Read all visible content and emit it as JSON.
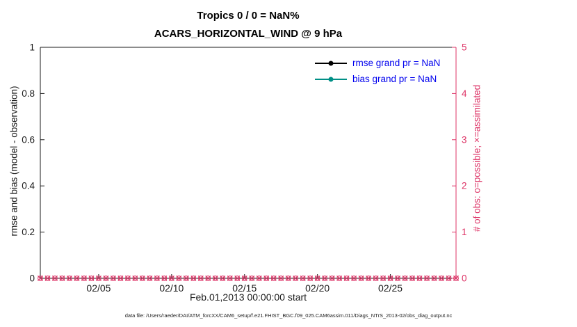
{
  "title": {
    "line1": "Tropics 0 / 0 = NaN%",
    "line2": "ACARS_HORIZONTAL_WIND @ 9 hPa"
  },
  "left_axis": {
    "label": "rmse and bias (model - observation)",
    "ticks": [
      "0",
      "0.2",
      "0.4",
      "0.6",
      "0.8",
      "1"
    ],
    "tick_values": [
      0,
      0.2,
      0.4,
      0.6,
      0.8,
      1
    ],
    "range": [
      0,
      1
    ],
    "color": "#1a1a1a"
  },
  "right_axis": {
    "label": "# of obs: o=possible; ×=assimilated",
    "ticks": [
      "0",
      "1",
      "2",
      "3",
      "4",
      "5"
    ],
    "tick_values": [
      0,
      1,
      2,
      3,
      4,
      5
    ],
    "range": [
      0,
      5
    ],
    "color": "#dd3366"
  },
  "x_axis": {
    "label": "Feb.01,2013 00:00:00 start",
    "tick_labels": [
      "02/05",
      "02/10",
      "02/15",
      "02/20",
      "02/25"
    ],
    "tick_days": [
      5,
      10,
      15,
      20,
      25
    ],
    "range_days": [
      1,
      29.5
    ]
  },
  "legend": {
    "items": [
      {
        "label": "rmse grand pr = NaN",
        "color": "#000000"
      },
      {
        "label": "bias grand pr = NaN",
        "color": "#008f86"
      }
    ],
    "text_color": "#0000ee"
  },
  "footer": "data file: /Users/raeder/DAI/ATM_forcXX/CAM6_setup/f.e21.FHIST_BGC.f09_025.CAM6assim.011/Diags_NTrS_2013-02/obs_diag_output.nc",
  "chart_data": {
    "type": "line",
    "title": "Tropics 0 / 0 = NaN% — ACARS_HORIZONTAL_WIND @ 9 hPa",
    "xlabel": "Feb.01,2013 00:00:00 start",
    "ylabel_left": "rmse and bias (model - observation)",
    "ylabel_right": "# of obs: o=possible; ×=assimilated",
    "x_tick_labels": [
      "02/05",
      "02/10",
      "02/15",
      "02/20",
      "02/25"
    ],
    "x_range_days_feb2013": [
      1,
      29.5
    ],
    "ylim_left": [
      0,
      1
    ],
    "ylim_right": [
      0,
      5
    ],
    "grid": false,
    "legend_position": "upper right inside",
    "series": [
      {
        "name": "rmse grand pr",
        "axis": "left",
        "summary_value": "NaN",
        "values": []
      },
      {
        "name": "bias grand pr",
        "axis": "left",
        "summary_value": "NaN",
        "values": []
      },
      {
        "name": "obs possible (o)",
        "axis": "right",
        "marker": "o",
        "constant_value": 0,
        "times_days": {
          "start": 1,
          "end": 29.5,
          "step": 0.5
        }
      },
      {
        "name": "obs assimilated (×)",
        "axis": "right",
        "marker": "×",
        "constant_value": 0,
        "times_days": {
          "start": 1,
          "end": 29.5,
          "step": 0.5
        }
      }
    ]
  }
}
